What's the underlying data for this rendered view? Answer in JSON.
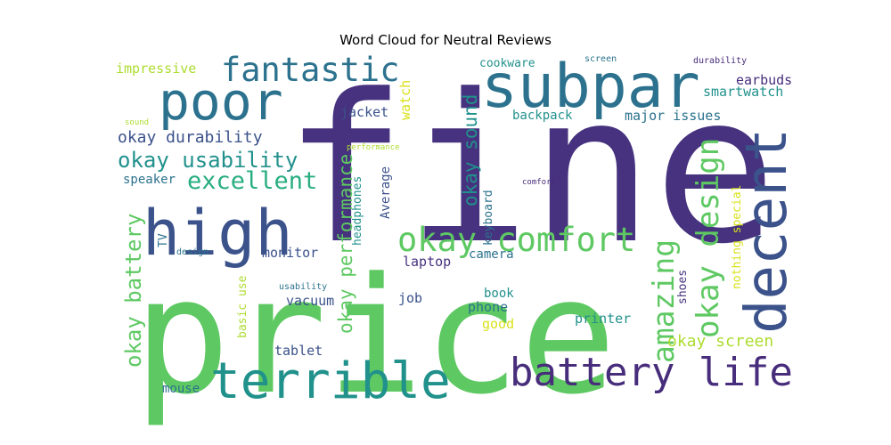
{
  "chart_data": {
    "type": "wordcloud",
    "title": "Word Cloud for Neutral Reviews",
    "colormap": "viridis",
    "background": "#ffffff",
    "words": [
      {
        "text": "fine",
        "weight": 1.0,
        "color": "#46327e",
        "orientation": "horizontal"
      },
      {
        "text": "price",
        "weight": 0.95,
        "color": "#5ec962",
        "orientation": "horizontal"
      },
      {
        "text": "subpar",
        "weight": 0.5,
        "color": "#2c728e",
        "orientation": "horizontal"
      },
      {
        "text": "decent",
        "weight": 0.48,
        "color": "#3b528b",
        "orientation": "vertical"
      },
      {
        "text": "high",
        "weight": 0.46,
        "color": "#3b528b",
        "orientation": "horizontal"
      },
      {
        "text": "poor",
        "weight": 0.42,
        "color": "#2c728e",
        "orientation": "horizontal"
      },
      {
        "text": "terrible",
        "weight": 0.4,
        "color": "#21918c",
        "orientation": "horizontal"
      },
      {
        "text": "battery life",
        "weight": 0.33,
        "color": "#472d7b",
        "orientation": "horizontal"
      },
      {
        "text": "fantastic",
        "weight": 0.27,
        "color": "#2c728e",
        "orientation": "horizontal"
      },
      {
        "text": "okay comfort",
        "weight": 0.27,
        "color": "#5ec962",
        "orientation": "horizontal"
      },
      {
        "text": "okay design",
        "weight": 0.25,
        "color": "#5ec962",
        "orientation": "vertical"
      },
      {
        "text": "amazing",
        "weight": 0.25,
        "color": "#5ec962",
        "orientation": "vertical"
      },
      {
        "text": "excellent",
        "weight": 0.2,
        "color": "#28ae80",
        "orientation": "horizontal"
      },
      {
        "text": "okay usability",
        "weight": 0.19,
        "color": "#21918c",
        "orientation": "horizontal"
      },
      {
        "text": "okay battery",
        "weight": 0.19,
        "color": "#5ec962",
        "orientation": "vertical"
      },
      {
        "text": "okay performance",
        "weight": 0.17,
        "color": "#5ec962",
        "orientation": "vertical"
      },
      {
        "text": "okay sound",
        "weight": 0.17,
        "color": "#21918c",
        "orientation": "vertical"
      },
      {
        "text": "okay durability",
        "weight": 0.15,
        "color": "#3b528b",
        "orientation": "horizontal"
      },
      {
        "text": "okay screen",
        "weight": 0.15,
        "color": "#addc30",
        "orientation": "horizontal"
      },
      {
        "text": "impressive",
        "weight": 0.12,
        "color": "#addc30",
        "orientation": "horizontal"
      },
      {
        "text": "cookware",
        "weight": 0.1,
        "color": "#21918c",
        "orientation": "horizontal"
      },
      {
        "text": "smartwatch",
        "weight": 0.1,
        "color": "#21918c",
        "orientation": "horizontal"
      },
      {
        "text": "earbuds",
        "weight": 0.1,
        "color": "#472d7b",
        "orientation": "horizontal"
      },
      {
        "text": "jacket",
        "weight": 0.1,
        "color": "#3b528b",
        "orientation": "horizontal"
      },
      {
        "text": "watch",
        "weight": 0.1,
        "color": "#d8e219",
        "orientation": "vertical"
      },
      {
        "text": "backpack",
        "weight": 0.1,
        "color": "#21918c",
        "orientation": "horizontal"
      },
      {
        "text": "major issues",
        "weight": 0.1,
        "color": "#2c728e",
        "orientation": "horizontal"
      },
      {
        "text": "nothing special",
        "weight": 0.09,
        "color": "#d8e219",
        "orientation": "vertical"
      },
      {
        "text": "speaker",
        "weight": 0.09,
        "color": "#2c728e",
        "orientation": "horizontal"
      },
      {
        "text": "headphones",
        "weight": 0.09,
        "color": "#21918c",
        "orientation": "vertical"
      },
      {
        "text": "Average",
        "weight": 0.09,
        "color": "#3b528b",
        "orientation": "vertical"
      },
      {
        "text": "keyboard",
        "weight": 0.09,
        "color": "#2c728e",
        "orientation": "vertical"
      },
      {
        "text": "monitor",
        "weight": 0.1,
        "color": "#3b528b",
        "orientation": "horizontal"
      },
      {
        "text": "laptop",
        "weight": 0.1,
        "color": "#46327e",
        "orientation": "horizontal"
      },
      {
        "text": "camera",
        "weight": 0.1,
        "color": "#2c728e",
        "orientation": "horizontal"
      },
      {
        "text": "TV",
        "weight": 0.09,
        "color": "#2c728e",
        "orientation": "vertical"
      },
      {
        "text": "shoes",
        "weight": 0.09,
        "color": "#46327e",
        "orientation": "vertical"
      },
      {
        "text": "basic use",
        "weight": 0.08,
        "color": "#addc30",
        "orientation": "vertical"
      },
      {
        "text": "job",
        "weight": 0.1,
        "color": "#3b528b",
        "orientation": "horizontal"
      },
      {
        "text": "book",
        "weight": 0.1,
        "color": "#21918c",
        "orientation": "horizontal"
      },
      {
        "text": "phone",
        "weight": 0.1,
        "color": "#2c728e",
        "orientation": "horizontal"
      },
      {
        "text": "good",
        "weight": 0.1,
        "color": "#d8e219",
        "orientation": "horizontal"
      },
      {
        "text": "vacuum",
        "weight": 0.1,
        "color": "#3b528b",
        "orientation": "horizontal"
      },
      {
        "text": "printer",
        "weight": 0.1,
        "color": "#21918c",
        "orientation": "horizontal"
      },
      {
        "text": "tablet",
        "weight": 0.1,
        "color": "#3b528b",
        "orientation": "horizontal"
      },
      {
        "text": "mouse",
        "weight": 0.09,
        "color": "#2c728e",
        "orientation": "horizontal"
      },
      {
        "text": "screen",
        "weight": 0.06,
        "color": "#2c728e",
        "orientation": "horizontal"
      },
      {
        "text": "durability",
        "weight": 0.06,
        "color": "#472d7b",
        "orientation": "horizontal"
      },
      {
        "text": "sound",
        "weight": 0.06,
        "color": "#addc30",
        "orientation": "horizontal"
      },
      {
        "text": "performance",
        "weight": 0.06,
        "color": "#addc30",
        "orientation": "horizontal"
      },
      {
        "text": "comfort",
        "weight": 0.06,
        "color": "#472d7b",
        "orientation": "horizontal"
      },
      {
        "text": "design",
        "weight": 0.06,
        "color": "#2c728e",
        "orientation": "horizontal"
      },
      {
        "text": "usability",
        "weight": 0.06,
        "color": "#2c728e",
        "orientation": "horizontal"
      }
    ]
  }
}
